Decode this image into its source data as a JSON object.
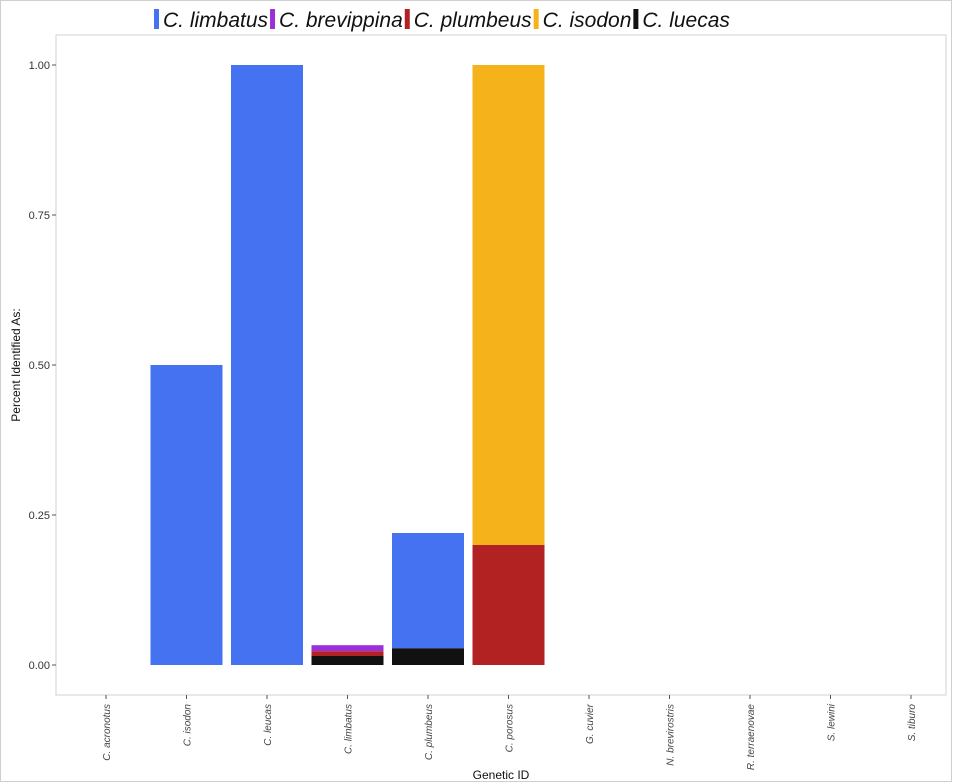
{
  "chart_data": {
    "type": "bar",
    "stacked": true,
    "xlabel": "Genetic ID",
    "ylabel": "Percent Identified As:",
    "ylim": [
      0,
      1.0
    ],
    "yticks": [
      "0.00",
      "0.25",
      "0.50",
      "0.75",
      "1.00"
    ],
    "ytick_values": [
      0,
      0.25,
      0.5,
      0.75,
      1.0
    ],
    "categories": [
      "C. acronotus",
      "C. isodon",
      "C. leucas",
      "C. limbatus",
      "C. plumbeus",
      "C. porosus",
      "G. cuvier",
      "N. brevirostris",
      "R. terraenovae",
      "S. lewini",
      "S. tiburo"
    ],
    "series": [
      {
        "name": "C. luecas",
        "color": "#111111",
        "values": [
          0,
          0,
          0,
          0.015,
          0.028,
          0,
          0,
          0,
          0,
          0,
          0
        ]
      },
      {
        "name": "C. plumbeus",
        "color": "#b22222",
        "values": [
          0,
          0,
          0,
          0.008,
          0,
          0.2,
          0,
          0,
          0,
          0,
          0
        ]
      },
      {
        "name": "C. brevippina",
        "color": "#9b30d9",
        "values": [
          0,
          0,
          0,
          0.01,
          0,
          0,
          0,
          0,
          0,
          0,
          0
        ]
      },
      {
        "name": "C. limbatus",
        "color": "#4472f0",
        "values": [
          0,
          0.5,
          1.0,
          0,
          0.192,
          0,
          0,
          0,
          0,
          0,
          0
        ]
      },
      {
        "name": "C. isodon",
        "color": "#f6b21b",
        "values": [
          0,
          0,
          0,
          0,
          0,
          0.8,
          0,
          0,
          0,
          0,
          0
        ]
      }
    ],
    "legend": {
      "position": "top",
      "entries": [
        {
          "name": "C. limbatus",
          "color": "#4472f0"
        },
        {
          "name": "C. brevippina",
          "color": "#9b30d9"
        },
        {
          "name": "C. plumbeus",
          "color": "#b22222"
        },
        {
          "name": "C. isodon",
          "color": "#f6b21b"
        },
        {
          "name": "C. luecas",
          "color": "#111111"
        }
      ]
    },
    "grid": false
  }
}
